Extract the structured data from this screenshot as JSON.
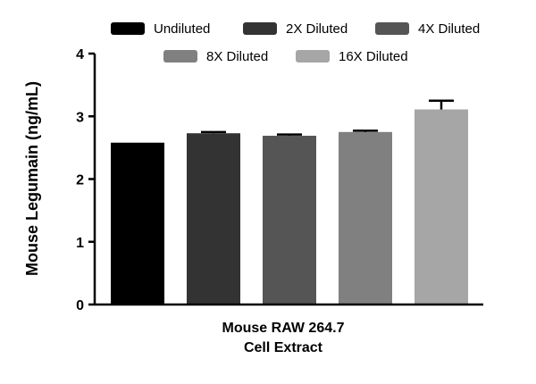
{
  "chart_data": {
    "type": "bar",
    "title": "",
    "ylabel": "Mouse Legumain (ng/mL)",
    "xlabel_lines": [
      "Mouse RAW 264.7",
      "Cell Extract"
    ],
    "ylim": [
      0,
      4
    ],
    "yticks": [
      0,
      1,
      2,
      3,
      4
    ],
    "legend_placement": "top",
    "grid": false,
    "series": [
      {
        "name": "Undiluted",
        "value": 2.58,
        "error": 0.0,
        "color": "#000000"
      },
      {
        "name": "2X Diluted",
        "value": 2.73,
        "error": 0.02,
        "color": "#333333"
      },
      {
        "name": "4X Diluted",
        "value": 2.69,
        "error": 0.02,
        "color": "#555555"
      },
      {
        "name": "8X Diluted",
        "value": 2.75,
        "error": 0.02,
        "color": "#808080"
      },
      {
        "name": "16X Diluted",
        "value": 3.11,
        "error": 0.14,
        "color": "#a6a6a6"
      }
    ]
  }
}
